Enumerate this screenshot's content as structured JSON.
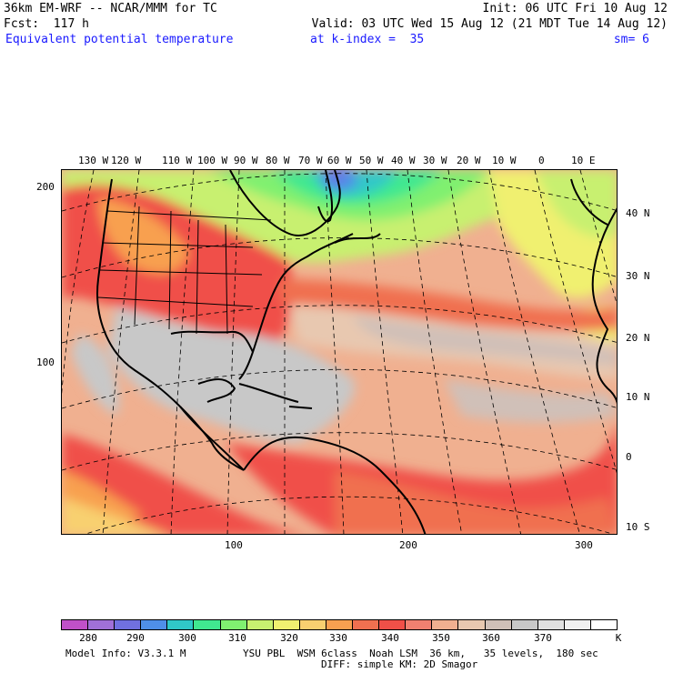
{
  "header": {
    "model_title": "36km EM-WRF -- NCAR/MMM for TC",
    "init": "Init: 06 UTC Fri 10 Aug 12",
    "forecast": "Fcst:  117 h",
    "valid": "Valid: 03 UTC Wed 15 Aug 12 (21 MDT Tue 14 Aug 12)",
    "field": "Equivalent potential temperature",
    "level": "at k-index =  35",
    "smoothing": "sm= 6"
  },
  "map": {
    "top_longitudes": [
      "130 W",
      "120 W",
      "110 W",
      "100 W",
      "90 W",
      "80 W",
      "70 W",
      "60 W",
      "50 W",
      "40 W",
      "30 W",
      "20 W",
      "10 W",
      "0",
      "10 E"
    ],
    "right_latitudes": [
      "40 N",
      "30 N",
      "20 N",
      "10 N",
      "0",
      "10 S"
    ],
    "left_grid_labels": [
      "200",
      "100"
    ],
    "bottom_grid_labels": [
      "100",
      "200",
      "300"
    ]
  },
  "colorbar": {
    "units": "K",
    "labels": [
      "280",
      "290",
      "300",
      "310",
      "320",
      "330",
      "340",
      "350",
      "360",
      "370"
    ],
    "colors": [
      "#c050c8",
      "#a070d8",
      "#7070e0",
      "#4f8fe8",
      "#30c8c8",
      "#40e890",
      "#80f070",
      "#c8f070",
      "#f0f070",
      "#f8d070",
      "#f8a050",
      "#f07050",
      "#f05048",
      "#f08070",
      "#f0b090",
      "#e8c8b0",
      "#d0c0b8",
      "#c8c8c8",
      "#e0e0e0",
      "#f0f0f0",
      "#ffffff"
    ]
  },
  "footer": {
    "model_info": "Model Info: V3.3.1 M",
    "physics": "YSU PBL  WSM 6class  Noah LSM  36 km,   35 levels,  180 sec",
    "diffusion": "DIFF: simple KM: 2D Smagor"
  }
}
